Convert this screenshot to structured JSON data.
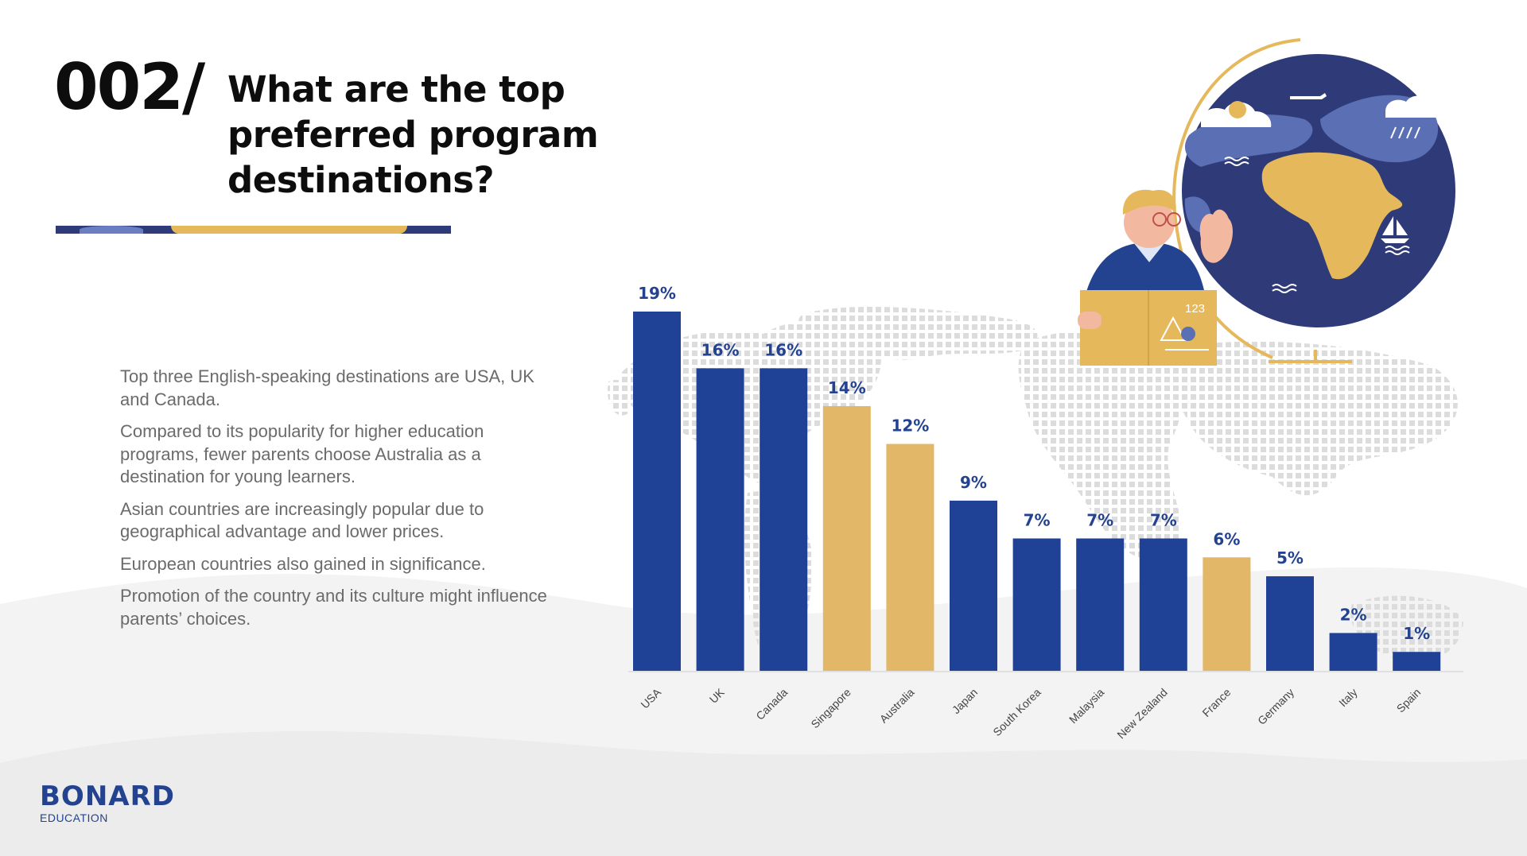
{
  "header": {
    "slide_number": "002/",
    "title": "What are the top preferred program destinations?"
  },
  "insights": [
    "Top three English-speaking destinations are USA, UK and Canada.",
    "Compared to its popularity for higher education programs, fewer parents choose Australia as a destination for young learners.",
    "Asian countries are increasingly popular due to geographical advantage and lower prices.",
    "European countries also gained in significance.",
    "Promotion of the country and its culture might influence parents’ choices."
  ],
  "colors": {
    "primary": "#1f4196",
    "highlight": "#e2b767",
    "label": "#23428f",
    "globe": "#2e3b78",
    "africa": "#e6b85c"
  },
  "illustration": {
    "book_number": "123"
  },
  "chart_data": {
    "type": "bar",
    "title": "",
    "xlabel": "",
    "ylabel": "",
    "ylim": [
      0,
      19
    ],
    "grid": false,
    "categories": [
      "USA",
      "UK",
      "Canada",
      "Singapore",
      "Australia",
      "Japan",
      "South Korea",
      "Malaysia",
      "New Zealand",
      "France",
      "Germany",
      "Italy",
      "Spain"
    ],
    "values": [
      19,
      16,
      16,
      14,
      12,
      9,
      7,
      7,
      7,
      6,
      5,
      2,
      1
    ],
    "labels": [
      "19%",
      "16%",
      "16%",
      "14%",
      "12%",
      "9%",
      "7%",
      "7%",
      "7%",
      "6%",
      "5%",
      "2%",
      "1%"
    ],
    "highlighted": [
      "Singapore",
      "Australia",
      "France"
    ]
  },
  "footer": {
    "brand_pre": "B",
    "brand_o": "O",
    "brand_post": "NARD",
    "sub": "EDUCATION"
  }
}
